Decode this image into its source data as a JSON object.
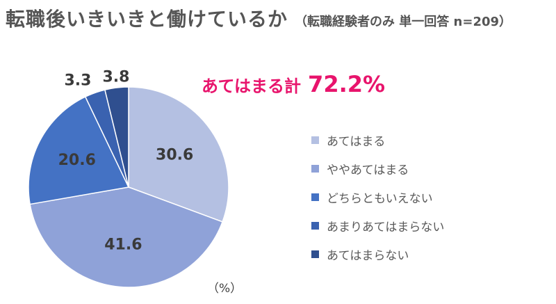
{
  "title": {
    "main": "転職後いきいきと働けているか",
    "sub": "（転職経験者のみ 単一回答 n=209）"
  },
  "callout": {
    "label": "あてはまる計",
    "value": "72.2%"
  },
  "unit_label": "（%）",
  "chart_data": {
    "type": "pie",
    "start_angle_deg": 0,
    "direction": "clockwise",
    "slices": [
      {
        "label": "あてはまる",
        "value": 30.6,
        "display": "30.6",
        "color": "#b4c0e2"
      },
      {
        "label": "ややあてはまる",
        "value": 41.6,
        "display": "41.6",
        "color": "#8fa2d8"
      },
      {
        "label": "どちらともいえない",
        "value": 20.6,
        "display": "20.6",
        "color": "#4472c4"
      },
      {
        "label": "あまりあてはまらない",
        "value": 3.3,
        "display": "3.3",
        "color": "#3a62b0"
      },
      {
        "label": "あてはまらない",
        "value": 3.8,
        "display": "3.8",
        "color": "#2f4f8f"
      }
    ]
  }
}
